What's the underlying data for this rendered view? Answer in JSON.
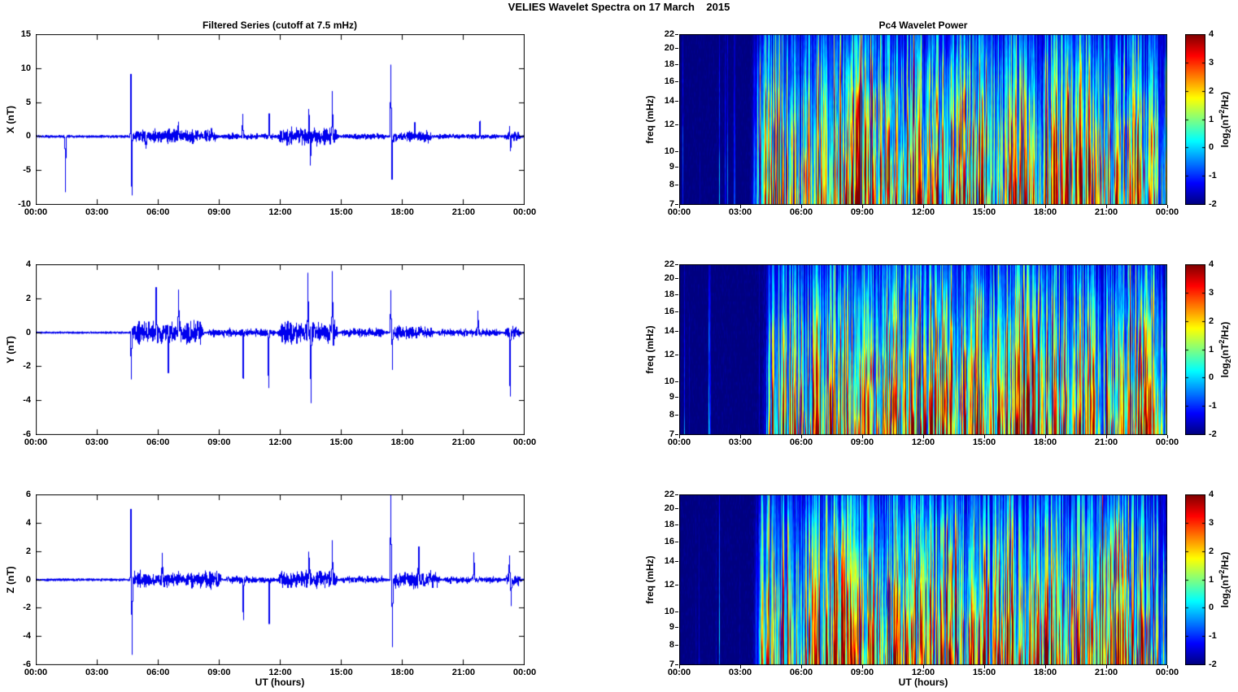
{
  "figure": {
    "title": "VELIES Wavelet Spectra on 17 March    2015",
    "background": "#ffffff",
    "series_color": "#0000ee"
  },
  "chart_data": {
    "x_axis": {
      "label": "UT (hours)",
      "ticks": [
        "00:00",
        "03:00",
        "06:00",
        "09:00",
        "12:00",
        "15:00",
        "18:00",
        "21:00",
        "00:00"
      ],
      "range_hours": [
        0,
        24
      ]
    },
    "timeseries": {
      "type": "line",
      "title": "Filtered Series (cutoff at 7.5 mHz)",
      "burst_format": [
        "start_hour",
        "end_hour",
        "amplitude_nT"
      ],
      "spike_format": [
        "hour",
        "amplitude_nT",
        "width_hour"
      ],
      "panels": [
        {
          "ylabel": "X (nT)",
          "ylim": [
            -10,
            15
          ],
          "yticks": [
            -10,
            -5,
            0,
            5,
            10,
            15
          ],
          "base": 0.22,
          "bursts": [
            [
              4.55,
              9.0,
              1.3
            ],
            [
              9.0,
              11.8,
              0.45
            ],
            [
              11.8,
              14.9,
              1.7
            ],
            [
              14.9,
              17.3,
              0.5
            ],
            [
              17.35,
              19.6,
              1.1
            ],
            [
              19.6,
              22.9,
              0.35
            ],
            [
              22.9,
              23.9,
              0.9
            ]
          ],
          "spikes": [
            [
              1.45,
              -8.3,
              0.018
            ],
            [
              4.66,
              9.3,
              0.022
            ],
            [
              4.71,
              -8.8,
              0.02
            ],
            [
              5.4,
              -2.2,
              0.02
            ],
            [
              7.0,
              2.2,
              0.02
            ],
            [
              10.15,
              3.1,
              0.02
            ],
            [
              11.45,
              3.3,
              0.02
            ],
            [
              13.4,
              3.8,
              0.02
            ],
            [
              13.48,
              -3.4,
              0.02
            ],
            [
              14.55,
              7.0,
              0.02
            ],
            [
              17.42,
              10.3,
              0.022
            ],
            [
              17.48,
              -6.2,
              0.02
            ],
            [
              18.6,
              2.0,
              0.02
            ],
            [
              21.8,
              2.4,
              0.018
            ],
            [
              23.25,
              2.0,
              0.018
            ],
            [
              23.3,
              -1.8,
              0.018
            ]
          ]
        },
        {
          "ylabel": "Y (nT)",
          "ylim": [
            -6,
            4
          ],
          "yticks": [
            -6,
            -4,
            -2,
            0,
            2,
            4
          ],
          "base": 0.07,
          "bursts": [
            [
              4.6,
              8.3,
              0.9
            ],
            [
              8.3,
              11.8,
              0.3
            ],
            [
              11.8,
              14.9,
              0.9
            ],
            [
              14.9,
              17.3,
              0.3
            ],
            [
              17.3,
              19.6,
              0.55
            ],
            [
              19.6,
              22.9,
              0.25
            ],
            [
              22.9,
              23.9,
              0.5
            ]
          ],
          "spikes": [
            [
              4.68,
              -2.9,
              0.02
            ],
            [
              5.9,
              2.1,
              0.02
            ],
            [
              6.5,
              -2.3,
              0.02
            ],
            [
              7.0,
              2.6,
              0.02
            ],
            [
              10.18,
              -2.8,
              0.02
            ],
            [
              11.42,
              -3.2,
              0.02
            ],
            [
              13.35,
              3.7,
              0.02
            ],
            [
              13.5,
              -4.5,
              0.02
            ],
            [
              14.55,
              3.4,
              0.02
            ],
            [
              17.42,
              2.6,
              0.02
            ],
            [
              17.5,
              -2.3,
              0.02
            ],
            [
              21.7,
              1.4,
              0.018
            ],
            [
              23.28,
              -3.8,
              0.02
            ]
          ]
        },
        {
          "ylabel": "Z (nT)",
          "ylim": [
            -6,
            6
          ],
          "yticks": [
            -6,
            -4,
            -2,
            0,
            2,
            4,
            6
          ],
          "base": 0.1,
          "bursts": [
            [
              4.55,
              9.2,
              0.8
            ],
            [
              9.2,
              11.8,
              0.3
            ],
            [
              11.8,
              14.9,
              0.8
            ],
            [
              14.9,
              17.3,
              0.3
            ],
            [
              17.35,
              19.9,
              0.8
            ],
            [
              19.9,
              22.9,
              0.25
            ],
            [
              22.9,
              23.9,
              0.6
            ]
          ],
          "spikes": [
            [
              4.66,
              5.2,
              0.02
            ],
            [
              4.72,
              -5.1,
              0.02
            ],
            [
              6.2,
              1.8,
              0.02
            ],
            [
              10.18,
              -2.7,
              0.02
            ],
            [
              11.45,
              -3.0,
              0.02
            ],
            [
              13.4,
              1.9,
              0.02
            ],
            [
              14.55,
              2.6,
              0.02
            ],
            [
              17.42,
              6.1,
              0.022
            ],
            [
              17.5,
              -4.9,
              0.02
            ],
            [
              18.8,
              2.5,
              0.02
            ],
            [
              21.5,
              2.0,
              0.018
            ],
            [
              23.25,
              2.1,
              0.018
            ],
            [
              23.33,
              -1.9,
              0.018
            ]
          ]
        }
      ]
    },
    "spectrograms": {
      "type": "heatmap",
      "title": "Pc4 Wavelet Power",
      "ylabel": "freq (mHz)",
      "freq_range_mHz": [
        7,
        22
      ],
      "freq_ticks_mHz": [
        7,
        8,
        9,
        10,
        12,
        14,
        16,
        18,
        20,
        22
      ],
      "freq_scale": "log",
      "colorbar": {
        "label_parts": {
          "p1": "log",
          "sub": "2",
          "p2": "(nT",
          "sup": "2",
          "p3": "/Hz)"
        },
        "ticks": [
          -2,
          -1,
          0,
          1,
          2,
          3,
          4
        ],
        "range": [
          -2,
          4
        ],
        "colormap": "jet"
      },
      "panels": [
        {
          "component": "X",
          "seed": 11,
          "onset_hour": 3.6
        },
        {
          "component": "Y",
          "seed": 23,
          "onset_hour": 4.2
        },
        {
          "component": "Z",
          "seed": 37,
          "onset_hour": 3.7
        }
      ]
    }
  }
}
